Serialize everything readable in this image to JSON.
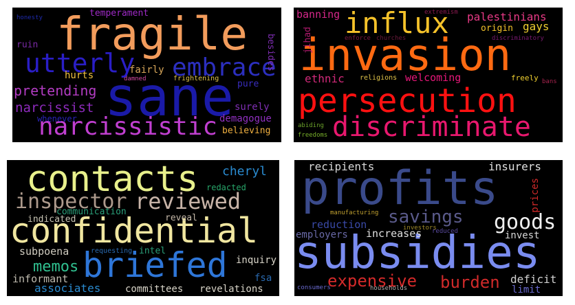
{
  "panels": [
    {
      "words": [
        {
          "text": "fragile",
          "color": "#f29c5c"
        },
        {
          "text": "sane",
          "color": "#1a1aa8"
        },
        {
          "text": "utterly",
          "color": "#2a1ec6"
        },
        {
          "text": "embrace",
          "color": "#2c2fbf"
        },
        {
          "text": "narcissistic",
          "color": "#c03fd0"
        },
        {
          "text": "pretending",
          "color": "#b23cc2"
        },
        {
          "text": "narcissist",
          "color": "#8e2bbd"
        },
        {
          "text": "temperament",
          "color": "#9e2ac6"
        },
        {
          "text": "ruin",
          "color": "#7a2aa6"
        },
        {
          "text": "honesty",
          "color": "#1f2bb0"
        },
        {
          "text": "besides",
          "color": "#7d2db0"
        },
        {
          "text": "hurts",
          "color": "#f0c040"
        },
        {
          "text": "fairly",
          "color": "#d9a85a"
        },
        {
          "text": "damned",
          "color": "#d44ba3"
        },
        {
          "text": "frightening",
          "color": "#e0c44a"
        },
        {
          "text": "pure",
          "color": "#3a2ec0"
        },
        {
          "text": "surely",
          "color": "#7f2fb4"
        },
        {
          "text": "demagogue",
          "color": "#9030c0"
        },
        {
          "text": "whenever",
          "color": "#2a23b8"
        },
        {
          "text": "believing",
          "color": "#f0b040"
        }
      ]
    },
    {
      "words": [
        {
          "text": "influx",
          "color": "#f5c22a"
        },
        {
          "text": "invasion",
          "color": "#ff6a12"
        },
        {
          "text": "persecution",
          "color": "#ff1111"
        },
        {
          "text": "discriminate",
          "color": "#e8186e"
        },
        {
          "text": "palestinians",
          "color": "#e83a86"
        },
        {
          "text": "banning",
          "color": "#d6288a"
        },
        {
          "text": "jihad",
          "color": "#b01a6e"
        },
        {
          "text": "extremism",
          "color": "#8a1a50"
        },
        {
          "text": "origin",
          "color": "#f2c22a"
        },
        {
          "text": "gays",
          "color": "#f0d030"
        },
        {
          "text": "enforce",
          "color": "#7a1a42"
        },
        {
          "text": "churches",
          "color": "#6a1a3c"
        },
        {
          "text": "discriminatory",
          "color": "#7a1a70"
        },
        {
          "text": "ethnic",
          "color": "#d22a7a"
        },
        {
          "text": "religions",
          "color": "#e0c44a"
        },
        {
          "text": "welcoming",
          "color": "#e8187a"
        },
        {
          "text": "freely",
          "color": "#f0d030"
        },
        {
          "text": "bans",
          "color": "#a6234e"
        },
        {
          "text": "abiding",
          "color": "#6aa02a"
        },
        {
          "text": "freedoms",
          "color": "#78b02a"
        }
      ]
    },
    {
      "words": [
        {
          "text": "contacts",
          "color": "#e8f08c"
        },
        {
          "text": "confidential",
          "color": "#f0e6a0"
        },
        {
          "text": "briefed",
          "color": "#2e76d8"
        },
        {
          "text": "inspector",
          "color": "#ad9a8c"
        },
        {
          "text": "reviewed",
          "color": "#c8b4a8"
        },
        {
          "text": "cheryl",
          "color": "#2a8bd0"
        },
        {
          "text": "redacted",
          "color": "#28a66a"
        },
        {
          "text": "communication",
          "color": "#2aa07a"
        },
        {
          "text": "indicated",
          "color": "#c8c4b4"
        },
        {
          "text": "reveal",
          "color": "#c4b8a8"
        },
        {
          "text": "subpoena",
          "color": "#d0ccc0"
        },
        {
          "text": "requesting",
          "color": "#2a6ab0"
        },
        {
          "text": "intel",
          "color": "#2aa07a"
        },
        {
          "text": "memos",
          "color": "#30c090"
        },
        {
          "text": "inquiry",
          "color": "#d8d4c8"
        },
        {
          "text": "informant",
          "color": "#c0bcb0"
        },
        {
          "text": "fsa",
          "color": "#2a6ab0"
        },
        {
          "text": "associates",
          "color": "#2a8bd0"
        },
        {
          "text": "committees",
          "color": "#d8d4c8"
        },
        {
          "text": "revelations",
          "color": "#d8d4c8"
        }
      ]
    },
    {
      "words": [
        {
          "text": "profits",
          "color": "#3a4a8a"
        },
        {
          "text": "subsidies",
          "color": "#7a8cf0"
        },
        {
          "text": "recipients",
          "color": "#d8d8d8"
        },
        {
          "text": "insurers",
          "color": "#e0e0e0"
        },
        {
          "text": "prices",
          "color": "#d42a2a"
        },
        {
          "text": "savings",
          "color": "#5a5a8a"
        },
        {
          "text": "goods",
          "color": "#f0f0f0"
        },
        {
          "text": "manufacturing",
          "color": "#c0a030"
        },
        {
          "text": "investors",
          "color": "#a08a2a"
        },
        {
          "text": "reduction",
          "color": "#3a4aa8"
        },
        {
          "text": "reduced",
          "color": "#5a4aa0"
        },
        {
          "text": "invest",
          "color": "#d8d8d8"
        },
        {
          "text": "employers",
          "color": "#6a6aa8"
        },
        {
          "text": "increases",
          "color": "#e0e0e0"
        },
        {
          "text": "expensive",
          "color": "#d42a2a"
        },
        {
          "text": "burden",
          "color": "#d02a2a"
        },
        {
          "text": "deficit",
          "color": "#d0d0d0"
        },
        {
          "text": "limit",
          "color": "#6a6ad0"
        },
        {
          "text": "consumers",
          "color": "#6a6ad0"
        },
        {
          "text": "households",
          "color": "#b0b0b0"
        }
      ]
    }
  ]
}
